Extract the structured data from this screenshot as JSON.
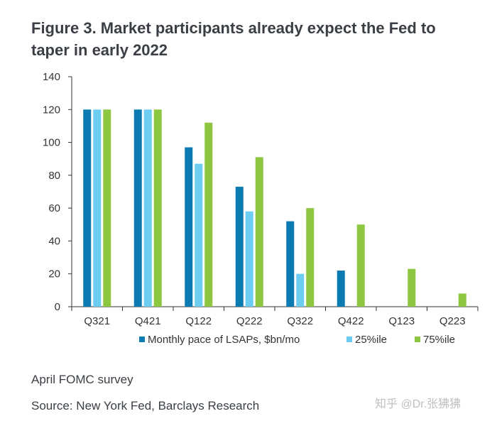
{
  "title": "Figure 3. Market participants already expect the Fed to taper in early 2022",
  "survey_note": "April FOMC survey",
  "source_note": "Source: New York Fed, Barclays Research",
  "watermark": "知乎 @Dr.张狒狒",
  "chart_data": {
    "type": "bar",
    "categories": [
      "Q321",
      "Q421",
      "Q122",
      "Q222",
      "Q322",
      "Q422",
      "Q123",
      "Q223"
    ],
    "series": [
      {
        "name": "Monthly pace of LSAPs, $bn/mo",
        "color": "#0b7bb2",
        "values": [
          120,
          120,
          97,
          73,
          52,
          22,
          null,
          null
        ]
      },
      {
        "name": "25%ile",
        "color": "#6dcdf0",
        "values": [
          120,
          120,
          87,
          58,
          20,
          null,
          null,
          null
        ]
      },
      {
        "name": "75%ile",
        "color": "#8dc63f",
        "values": [
          120,
          120,
          112,
          91,
          60,
          50,
          23,
          8
        ]
      }
    ],
    "ylim": [
      0,
      140
    ],
    "yticks": [
      0,
      20,
      40,
      60,
      80,
      100,
      120,
      140
    ],
    "grid": false,
    "legend_position": "bottom"
  }
}
